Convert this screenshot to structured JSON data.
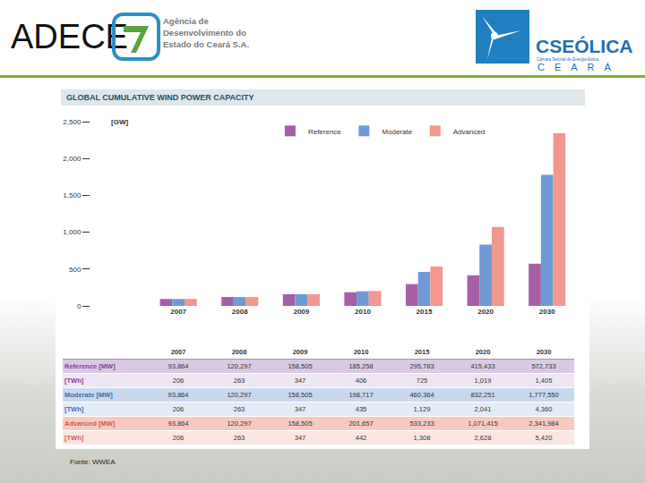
{
  "header": {
    "org": "ADECE",
    "org_full": [
      "Agência de",
      "Desenvolvimento do",
      "Estado do Ceará S.A."
    ],
    "partner": "CSEÓLICA",
    "partner_sub": "Câmara Setorial de Energia Eólica",
    "partner_place": "CEARÁ"
  },
  "chart_data": {
    "type": "bar",
    "title": "GLOBAL CUMULATIVE WIND POWER CAPACITY",
    "y_label": "[GW]",
    "categories": [
      "2007",
      "2008",
      "2009",
      "2010",
      "2015",
      "2020",
      "2030"
    ],
    "series": [
      {
        "name": "Reference",
        "color": "#a65fa6",
        "values": [
          93.864,
          120.297,
          158.505,
          185.258,
          295.783,
          415.433,
          572.733
        ]
      },
      {
        "name": "Moderate",
        "color": "#6f9ad6",
        "values": [
          93.864,
          120.297,
          158.505,
          198.717,
          460.364,
          832.251,
          1777.55
        ]
      },
      {
        "name": "Advanced",
        "color": "#f2988e",
        "values": [
          93.864,
          120.297,
          158.505,
          201.657,
          533.233,
          1071.415,
          2341.984
        ]
      }
    ],
    "ylim": [
      0,
      2500
    ],
    "yticks": [
      0,
      500,
      {
        "value": 1000,
        "label": "1,000"
      },
      {
        "value": 1500,
        "label": "1,500"
      },
      {
        "value": 2000,
        "label": "2,000"
      },
      {
        "value": 2500,
        "label": "2,500"
      }
    ],
    "grid": false,
    "legend": "top right"
  },
  "table": {
    "columns": [
      "2007",
      "2008",
      "2009",
      "2010",
      "2015",
      "2020",
      "2030"
    ],
    "rows": [
      {
        "label": "Reference [MW]",
        "values": [
          "93,864",
          "120,297",
          "158,505",
          "185,258",
          "295,783",
          "415,433",
          "572,733"
        ]
      },
      {
        "label": "[TWh]",
        "values": [
          "206",
          "263",
          "347",
          "406",
          "725",
          "1,019",
          "1,405"
        ]
      },
      {
        "label": "Moderate [MW]",
        "values": [
          "93,864",
          "120,297",
          "158,505",
          "198,717",
          "460,364",
          "832,251",
          "1,777,550"
        ]
      },
      {
        "label": "[TWh]",
        "values": [
          "206",
          "263",
          "347",
          "435",
          "1,129",
          "2,041",
          "4,360"
        ]
      },
      {
        "label": "Advanced [MW]",
        "values": [
          "93,864",
          "120,297",
          "158,505",
          "201,657",
          "533,233",
          "1,071,415",
          "2,341,984"
        ]
      },
      {
        "label": "[TWh]",
        "values": [
          "206",
          "263",
          "347",
          "442",
          "1,308",
          "2,628",
          "5,420"
        ]
      }
    ]
  },
  "source": "Fonte: WWEA"
}
